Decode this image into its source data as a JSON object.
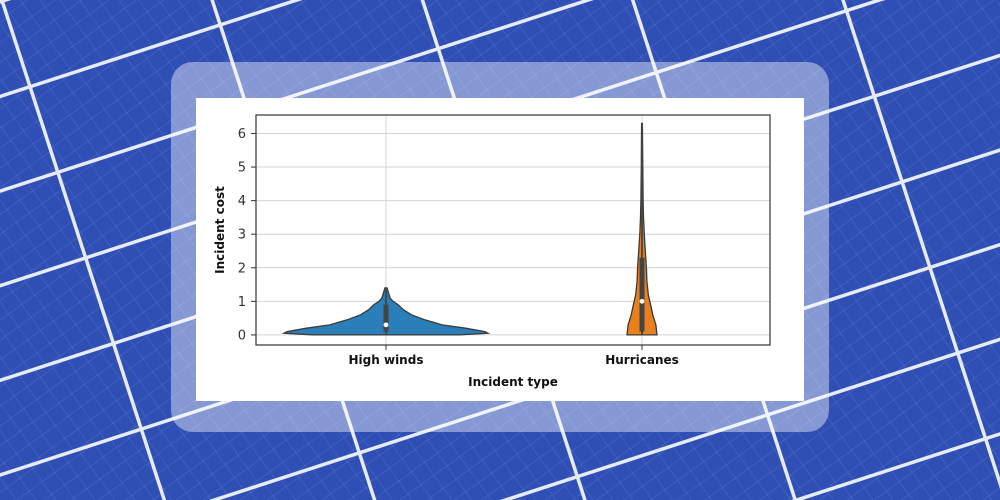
{
  "background": {
    "icon": "solar-panel-photo",
    "panel_color": "#2f4fb5",
    "panel_dark": "#24409c",
    "frame_color": "#dfe5f2"
  },
  "chart_data": {
    "type": "violin",
    "xlabel": "Incident type",
    "ylabel": "Incident cost",
    "ylim": [
      -0.3,
      6.55
    ],
    "yticks": [
      0,
      1,
      2,
      3,
      4,
      5,
      6
    ],
    "grid": true,
    "categories": [
      "High winds",
      "Hurricanes"
    ],
    "violins": [
      {
        "category": "High winds",
        "color": "#2a7fb8",
        "range": [
          0.0,
          1.4
        ],
        "q1": 0.1,
        "median": 0.3,
        "q3": 0.9,
        "whisker": [
          0.0,
          1.4
        ],
        "profile": [
          [
            0.0,
            0.72
          ],
          [
            0.05,
            1.0
          ],
          [
            0.1,
            0.97
          ],
          [
            0.2,
            0.78
          ],
          [
            0.3,
            0.55
          ],
          [
            0.45,
            0.38
          ],
          [
            0.6,
            0.25
          ],
          [
            0.75,
            0.17
          ],
          [
            0.9,
            0.12
          ],
          [
            1.0,
            0.07
          ],
          [
            1.1,
            0.04
          ],
          [
            1.25,
            0.025
          ],
          [
            1.4,
            0.01
          ]
        ]
      },
      {
        "category": "Hurricanes",
        "color": "#e8801e",
        "range": [
          0.0,
          6.3
        ],
        "q1": 0.1,
        "median": 1.0,
        "q3": 2.3,
        "whisker": [
          0.0,
          6.3
        ],
        "profile": [
          [
            0.0,
            1.0
          ],
          [
            0.3,
            0.93
          ],
          [
            0.6,
            0.72
          ],
          [
            0.9,
            0.57
          ],
          [
            1.2,
            0.42
          ],
          [
            1.6,
            0.33
          ],
          [
            2.0,
            0.29
          ],
          [
            2.5,
            0.22
          ],
          [
            3.0,
            0.15
          ],
          [
            3.5,
            0.1
          ],
          [
            4.0,
            0.07
          ],
          [
            5.0,
            0.05
          ],
          [
            6.0,
            0.035
          ],
          [
            6.3,
            0.03
          ]
        ]
      }
    ]
  }
}
